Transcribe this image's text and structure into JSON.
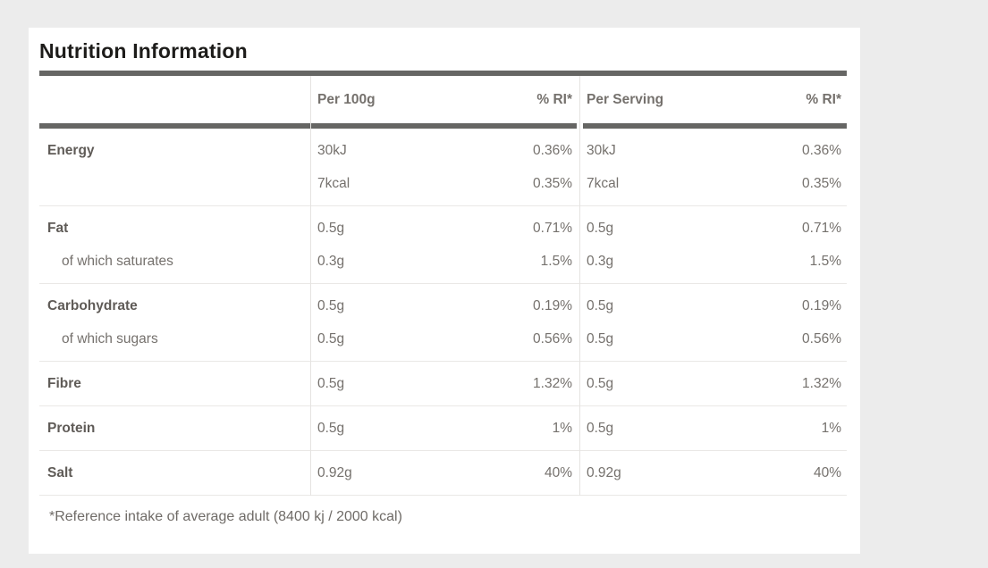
{
  "title": "Nutrition Information",
  "footnote": "*Reference intake of average adult (8400 kj / 2000 kcal)",
  "header": {
    "per100g": "Per 100g",
    "ri100g": "% RI*",
    "perServing": "Per Serving",
    "riServing": "% RI*"
  },
  "groups": [
    {
      "rows": [
        {
          "label": "Energy",
          "style": "bold",
          "per100g": "30kJ",
          "ri100g": "0.36%",
          "perServing": "30kJ",
          "riServing": "0.36%"
        },
        {
          "label": "",
          "style": "sub",
          "per100g": "7kcal",
          "ri100g": "0.35%",
          "perServing": "7kcal",
          "riServing": "0.35%"
        }
      ]
    },
    {
      "rows": [
        {
          "label": "Fat",
          "style": "bold",
          "per100g": "0.5g",
          "ri100g": "0.71%",
          "perServing": "0.5g",
          "riServing": "0.71%"
        },
        {
          "label": "of which saturates",
          "style": "sub",
          "per100g": "0.3g",
          "ri100g": "1.5%",
          "perServing": "0.3g",
          "riServing": "1.5%"
        }
      ]
    },
    {
      "rows": [
        {
          "label": "Carbohydrate",
          "style": "bold",
          "per100g": "0.5g",
          "ri100g": "0.19%",
          "perServing": "0.5g",
          "riServing": "0.19%"
        },
        {
          "label": "of which sugars",
          "style": "sub",
          "per100g": "0.5g",
          "ri100g": "0.56%",
          "perServing": "0.5g",
          "riServing": "0.56%"
        }
      ]
    },
    {
      "rows": [
        {
          "label": "Fibre",
          "style": "bold",
          "per100g": "0.5g",
          "ri100g": "1.32%",
          "perServing": "0.5g",
          "riServing": "1.32%"
        }
      ]
    },
    {
      "rows": [
        {
          "label": "Protein",
          "style": "bold",
          "per100g": "0.5g",
          "ri100g": "1%",
          "perServing": "0.5g",
          "riServing": "1%"
        }
      ]
    },
    {
      "rows": [
        {
          "label": "Salt",
          "style": "bold",
          "per100g": "0.92g",
          "ri100g": "40%",
          "perServing": "0.92g",
          "riServing": "40%"
        }
      ]
    }
  ],
  "colors": {
    "page_bg": "#ececec",
    "card_bg": "#ffffff",
    "title_color": "#1d1c1a",
    "bar_color": "#666664",
    "header_color": "#6b6763",
    "label_color": "#5f5b57",
    "value_color": "#75716d",
    "footnote_color": "#6f6b67"
  }
}
